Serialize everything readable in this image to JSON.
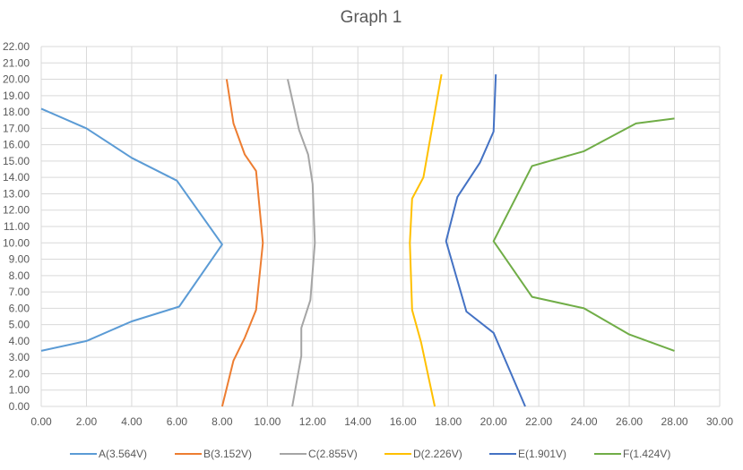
{
  "chart_data": {
    "type": "line",
    "title": "Graph 1",
    "xlabel": "",
    "ylabel": "",
    "xlim": [
      0,
      30
    ],
    "ylim": [
      0,
      22
    ],
    "x_ticks": [
      "0.00",
      "2.00",
      "4.00",
      "6.00",
      "8.00",
      "10.00",
      "12.00",
      "14.00",
      "16.00",
      "18.00",
      "20.00",
      "22.00",
      "24.00",
      "26.00",
      "28.00",
      "30.00"
    ],
    "y_ticks": [
      "0.00",
      "1.00",
      "2.00",
      "3.00",
      "4.00",
      "5.00",
      "6.00",
      "7.00",
      "8.00",
      "9.00",
      "10.00",
      "11.00",
      "12.00",
      "13.00",
      "14.00",
      "15.00",
      "16.00",
      "17.00",
      "18.00",
      "19.00",
      "20.00",
      "21.00",
      "22.00"
    ],
    "grid": true,
    "legend_position": "bottom",
    "series": [
      {
        "name": "A(3.564V)",
        "color": "#5b9bd5",
        "points": [
          [
            0,
            3.4
          ],
          [
            2,
            4.0
          ],
          [
            4,
            5.2
          ],
          [
            6.1,
            6.1
          ],
          [
            8,
            9.9
          ],
          [
            6,
            13.8
          ],
          [
            4,
            15.2
          ],
          [
            2,
            17.0
          ],
          [
            0,
            18.2
          ]
        ]
      },
      {
        "name": "B(3.152V)",
        "color": "#ed7d31",
        "points": [
          [
            8,
            0
          ],
          [
            8.5,
            2.8
          ],
          [
            9,
            4.2
          ],
          [
            9.5,
            5.9
          ],
          [
            9.8,
            10.0
          ],
          [
            9.5,
            14.4
          ],
          [
            9,
            15.4
          ],
          [
            8.5,
            17.3
          ],
          [
            8.2,
            20.0
          ]
        ]
      },
      {
        "name": "C(2.855V)",
        "color": "#a5a5a5",
        "points": [
          [
            11.1,
            0
          ],
          [
            11.5,
            3.1
          ],
          [
            11.5,
            4.8
          ],
          [
            11.9,
            6.5
          ],
          [
            12.1,
            10.0
          ],
          [
            12,
            13.6
          ],
          [
            11.8,
            15.4
          ],
          [
            11.4,
            16.9
          ],
          [
            10.9,
            20.0
          ]
        ]
      },
      {
        "name": "D(2.226V)",
        "color": "#ffc000",
        "points": [
          [
            17.4,
            0
          ],
          [
            16.8,
            3.9
          ],
          [
            16.4,
            5.9
          ],
          [
            16.3,
            10.0
          ],
          [
            16.4,
            12.7
          ],
          [
            16.9,
            14.0
          ],
          [
            17.7,
            20.3
          ]
        ]
      },
      {
        "name": "E(1.901V)",
        "color": "#4472c4",
        "points": [
          [
            21.4,
            0
          ],
          [
            20,
            4.5
          ],
          [
            18.8,
            5.8
          ],
          [
            17.9,
            10.1
          ],
          [
            18.4,
            12.8
          ],
          [
            19.4,
            14.9
          ],
          [
            20,
            16.8
          ],
          [
            20.1,
            20.3
          ]
        ]
      },
      {
        "name": "F(1.424V)",
        "color": "#70ad47",
        "points": [
          [
            28,
            3.4
          ],
          [
            26,
            4.4
          ],
          [
            24,
            6.0
          ],
          [
            21.7,
            6.7
          ],
          [
            20,
            10.1
          ],
          [
            21.7,
            14.7
          ],
          [
            24,
            15.6
          ],
          [
            26.3,
            17.3
          ],
          [
            28,
            17.6
          ]
        ]
      }
    ]
  }
}
